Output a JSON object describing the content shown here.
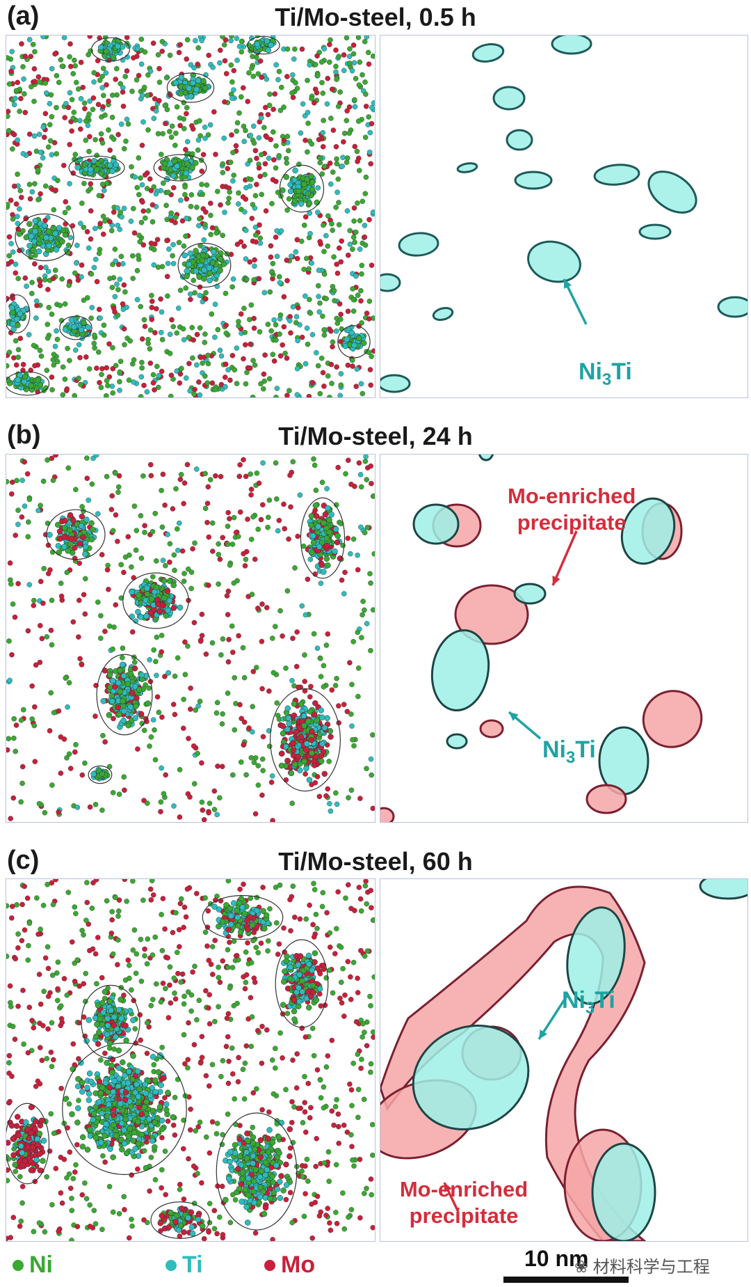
{
  "panels": [
    {
      "letter": "(a)",
      "title": "Ti/Mo-steel, 0.5 h",
      "labels": {
        "ni3ti": "Ni3Ti"
      }
    },
    {
      "letter": "(b)",
      "title": "Ti/Mo-steel, 24 h",
      "labels": {
        "ni3ti": "Ni3Ti",
        "mo": "Mo-enriched precipitate"
      }
    },
    {
      "letter": "(c)",
      "title": "Ti/Mo-steel, 60 h",
      "labels": {
        "ni3ti": "Ni3Ti",
        "mo": "Mo-enriched precipitate"
      }
    }
  ],
  "legend": [
    {
      "symbol": "Ni",
      "color": "#3aa832"
    },
    {
      "symbol": "Ti",
      "color": "#2fbcbc"
    },
    {
      "symbol": "Mo",
      "color": "#c8203a"
    }
  ],
  "scale_bar": {
    "label": "10 nm"
  },
  "watermark": {
    "text": "材料科学与工程"
  },
  "colors": {
    "teal": "#9ef0e6",
    "pink": "#f6a6a6",
    "label_teal": "#1fa3a3",
    "label_red": "#d42d3c"
  }
}
